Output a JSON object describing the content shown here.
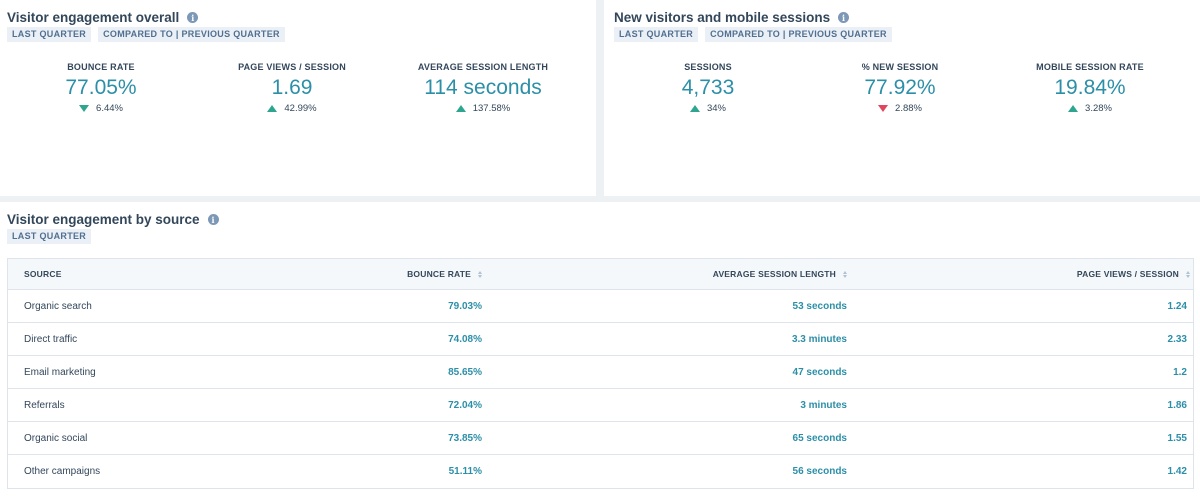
{
  "engagement": {
    "title": "Visitor engagement overall",
    "tags": [
      "LAST QUARTER",
      "COMPARED TO | PREVIOUS QUARTER"
    ],
    "kpis": [
      {
        "label": "BOUNCE RATE",
        "value": "77.05%",
        "change": "6.44%",
        "direction": "down",
        "color": "#2ea68f"
      },
      {
        "label": "PAGE VIEWS / SESSION",
        "value": "1.69",
        "change": "42.99%",
        "direction": "up",
        "color": "#2ea68f"
      },
      {
        "label": "AVERAGE SESSION LENGTH",
        "value": "114 seconds",
        "change": "137.58%",
        "direction": "up",
        "color": "#2ea68f"
      }
    ]
  },
  "visitors": {
    "title": "New visitors and mobile sessions",
    "tags": [
      "LAST QUARTER",
      "COMPARED TO | PREVIOUS QUARTER"
    ],
    "kpis": [
      {
        "label": "SESSIONS",
        "value": "4,733",
        "change": "34%",
        "direction": "up",
        "color": "#2ea68f"
      },
      {
        "label": "% NEW SESSION",
        "value": "77.92%",
        "change": "2.88%",
        "direction": "down",
        "color": "#e0465e"
      },
      {
        "label": "MOBILE SESSION RATE",
        "value": "19.84%",
        "change": "3.28%",
        "direction": "up",
        "color": "#2ea68f"
      }
    ]
  },
  "source": {
    "title": "Visitor engagement by source",
    "tags": [
      "LAST QUARTER"
    ],
    "columns": [
      "SOURCE",
      "BOUNCE RATE",
      "AVERAGE SESSION LENGTH",
      "PAGE VIEWS / SESSION"
    ],
    "rows": [
      [
        "Organic search",
        "79.03%",
        "53 seconds",
        "1.24"
      ],
      [
        "Direct traffic",
        "74.08%",
        "3.3 minutes",
        "2.33"
      ],
      [
        "Email marketing",
        "85.65%",
        "47 seconds",
        "1.2"
      ],
      [
        "Referrals",
        "72.04%",
        "3 minutes",
        "1.86"
      ],
      [
        "Organic social",
        "73.85%",
        "65 seconds",
        "1.55"
      ],
      [
        "Other campaigns",
        "51.11%",
        "56 seconds",
        "1.42"
      ]
    ]
  },
  "colors": {
    "accent": "#2c8fa8",
    "positive": "#2ea68f",
    "negative": "#e0465e"
  }
}
